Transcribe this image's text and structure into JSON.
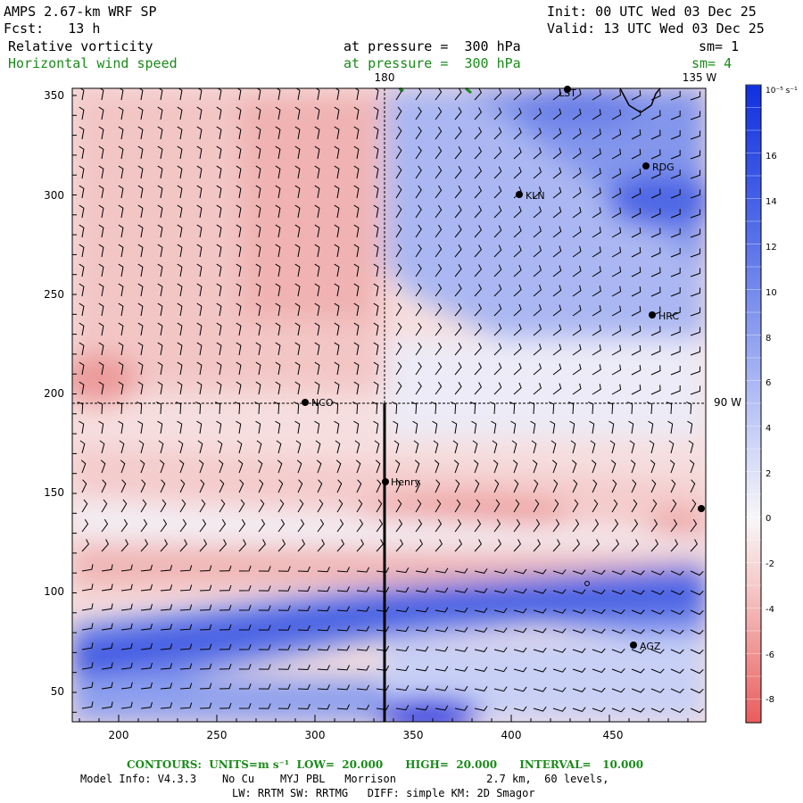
{
  "header": {
    "model_title": "AMPS 2.67-km WRF SP",
    "init": "Init: 00 UTC Wed 03 Dec 25",
    "fcst": "Fcst:   13 h",
    "valid": "Valid: 13 UTC Wed 03 Dec 25",
    "field1": "Relative vorticity",
    "field1_level": "at pressure =  300 hPa",
    "field1_sm": "sm= 1",
    "field2": "Horizontal wind speed",
    "field2_level": "at pressure =  300 hPa",
    "field2_sm": "sm= 4"
  },
  "map": {
    "x_ticks": [
      "200",
      "250",
      "300",
      "350",
      "400",
      "450"
    ],
    "y_ticks": [
      "350",
      "300",
      "250",
      "200",
      "150",
      "100",
      "50"
    ],
    "lon_labels": [
      "180",
      "135 W",
      "90 W"
    ],
    "stations": [
      "LST",
      "RDG",
      "KLN",
      "HRC",
      "NCO",
      "Henry",
      "AGZ"
    ],
    "colorbar_unit": "10⁻⁵ s⁻¹",
    "colorbar_ticks": [
      "16",
      "14",
      "12",
      "10",
      "8",
      "6",
      "4",
      "2",
      "0",
      "-2",
      "-4",
      "-6",
      "-8"
    ],
    "colors": {
      "strong_pos": "#1e3cdc",
      "mid_pos": "#7f93ee",
      "weak_pos": "#dfe4fb",
      "neutral": "#f7f5f7",
      "weak_neg": "#f7dcdc",
      "mid_neg": "#f1a0a0",
      "strong_neg": "#ea6060"
    }
  },
  "footer": {
    "contours": "CONTOURS:  UNITS=m s⁻¹  LOW=  20.000      HIGH=  20.000      INTERVAL=   10.000",
    "model_info": "Model Info: V4.3.3    No Cu    MYJ PBL   Morrison              2.7 km,  60 levels,",
    "model_info2": "LW: RRTM SW: RRTMG   DIFF: simple KM: 2D Smagor"
  }
}
